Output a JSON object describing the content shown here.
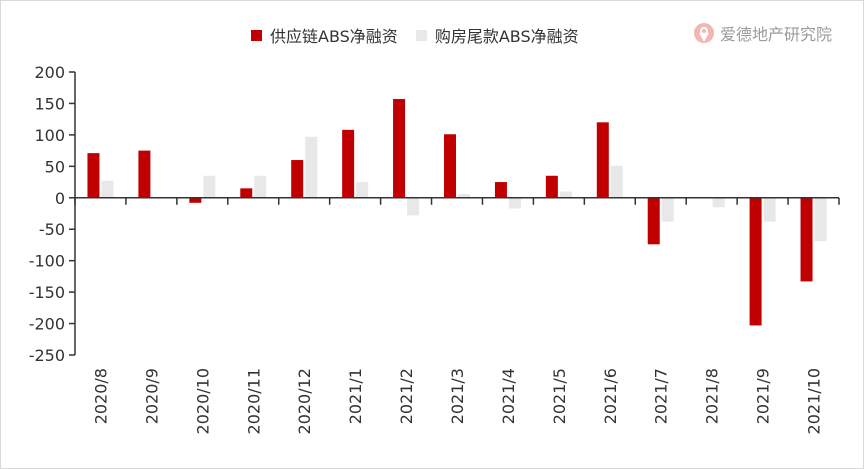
{
  "chart_data": {
    "type": "bar",
    "categories": [
      "2020/8",
      "2020/9",
      "2020/10",
      "2020/11",
      "2020/12",
      "2021/1",
      "2021/2",
      "2021/3",
      "2021/4",
      "2021/5",
      "2021/6",
      "2021/7",
      "2021/8",
      "2021/9",
      "2021/10"
    ],
    "series": [
      {
        "name": "供应链ABS净融资",
        "color": "#c00000",
        "values": [
          71,
          75,
          -8,
          15,
          60,
          108,
          157,
          101,
          25,
          35,
          120,
          -74,
          0,
          -203,
          -133
        ]
      },
      {
        "name": "购房尾款ABS净融资",
        "color": "#e8e8e8",
        "values": [
          27,
          0,
          35,
          35,
          97,
          25,
          -28,
          6,
          -17,
          10,
          51,
          -38,
          -15,
          -38,
          -69
        ]
      }
    ],
    "ylim": [
      -250,
      200
    ],
    "yticks": [
      200,
      150,
      100,
      50,
      0,
      -50,
      -100,
      -150,
      -200,
      -250
    ],
    "title": "",
    "xlabel": "",
    "ylabel": "",
    "grid": false,
    "legend_position": "top"
  },
  "brand": {
    "text": "爱德地产研究院",
    "logo_icon": "brand-logo-icon"
  }
}
